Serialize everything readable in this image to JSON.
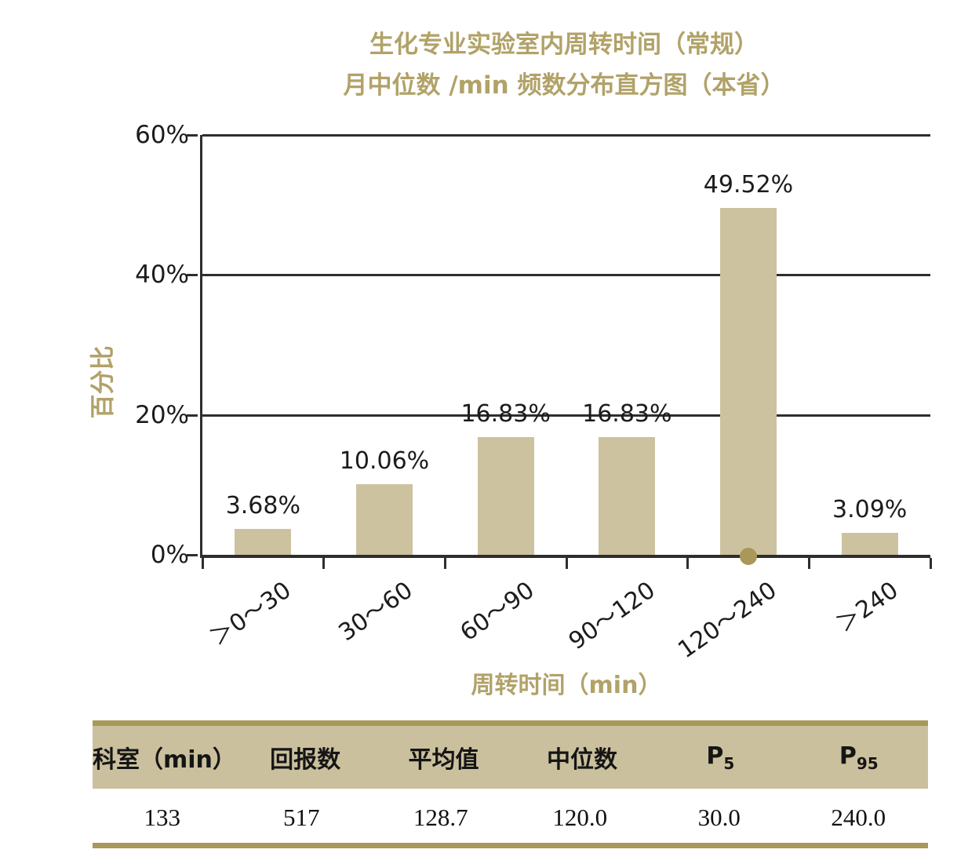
{
  "chart_data": {
    "type": "bar",
    "title_line1": "生化专业实验室内周转时间（常规）",
    "title_line2": "月中位数 /min 频数分布直方图（本省）",
    "categories": [
      "＞0～30",
      "30～60",
      "60～90",
      "90～120",
      "120～240",
      "＞240"
    ],
    "values": [
      3.68,
      10.06,
      16.83,
      16.83,
      49.52,
      3.09
    ],
    "value_labels": [
      "3.68%",
      "10.06%",
      "16.83%",
      "16.83%",
      "49.52%",
      "3.09%"
    ],
    "xlabel": "周转时间（min）",
    "ylabel": "百分比",
    "ylim": [
      0,
      60
    ],
    "ytick_values": [
      0,
      20,
      40,
      60
    ],
    "ytick_labels": [
      "0%",
      "20%",
      "40%",
      "60%"
    ],
    "grid": "horizontal",
    "legend": "none",
    "marker": {
      "category": "120～240",
      "value": 0,
      "color": "#a8985a"
    },
    "colors": {
      "bar": "#cdc2a0",
      "axis": "#2e2e2c",
      "value_label_text": "#1c1c1c",
      "gold_text": "#b1a268"
    }
  },
  "table": {
    "columns": [
      {
        "label": "科室（min）",
        "sub": ""
      },
      {
        "label": "回报数",
        "sub": ""
      },
      {
        "label": "平均值",
        "sub": ""
      },
      {
        "label": "中位数",
        "sub": ""
      },
      {
        "label": "P",
        "sub": "5"
      },
      {
        "label": "P",
        "sub": "95"
      }
    ],
    "values": [
      "133",
      "517",
      "128.7",
      "120.0",
      "30.0",
      "240.0"
    ],
    "header_bg": "#cbc09d",
    "rule_color": "#a8985a"
  }
}
